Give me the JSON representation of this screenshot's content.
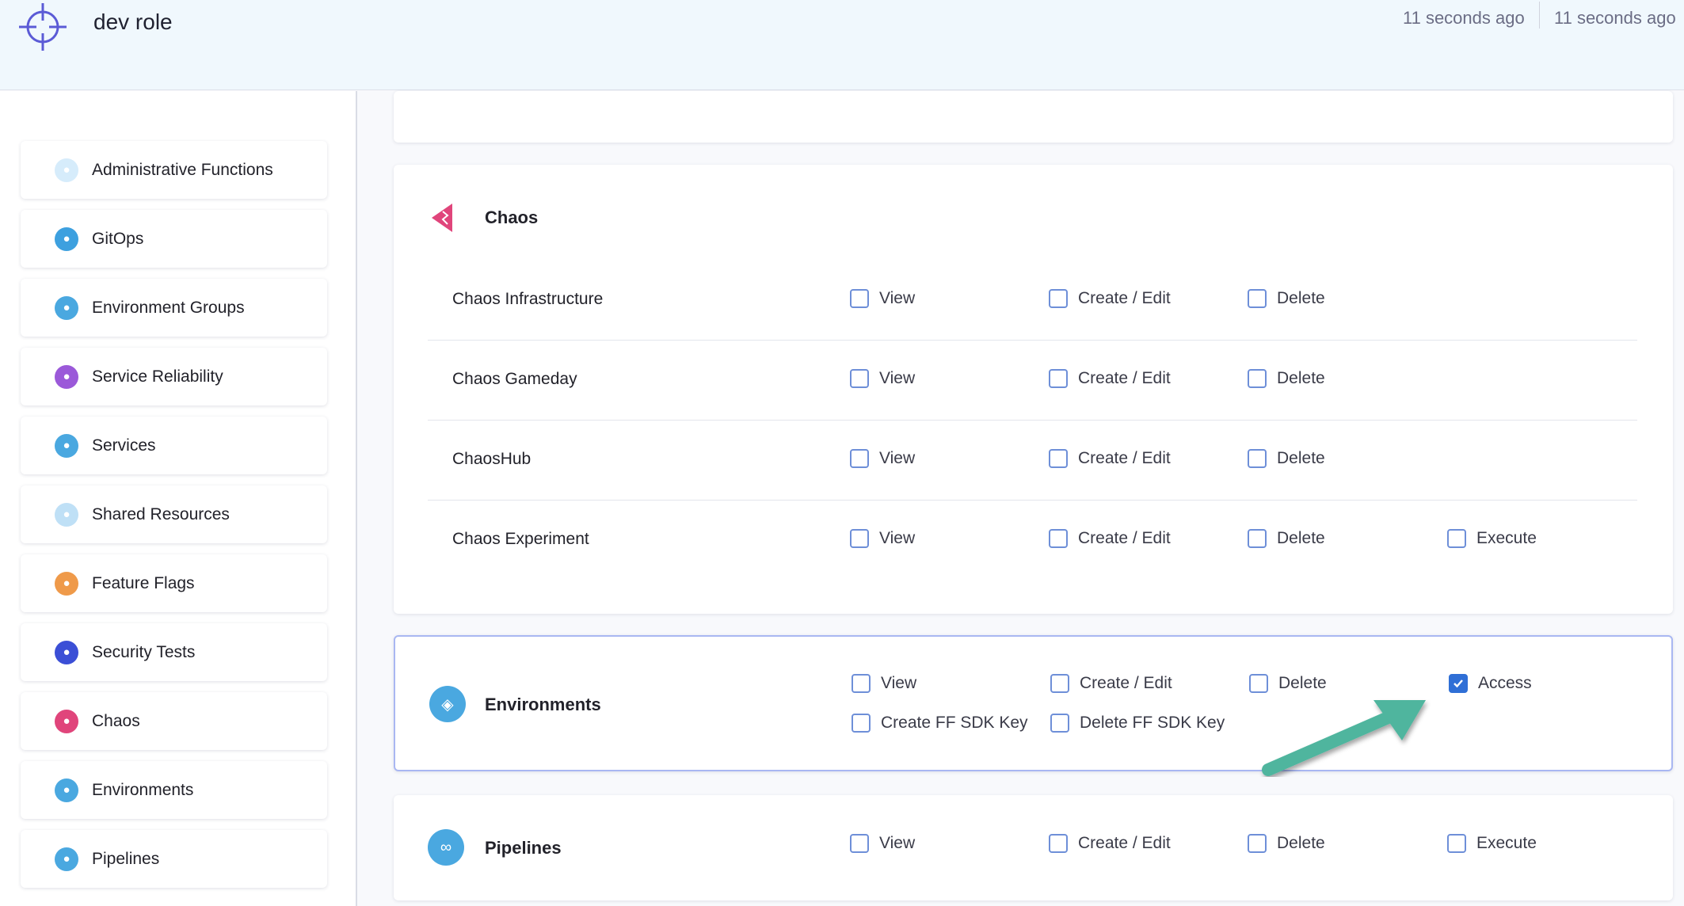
{
  "header": {
    "title": "dev role",
    "timestamps": [
      "11 seconds ago",
      "11 seconds ago"
    ],
    "logo_icon": "crosshair-icon",
    "accent": "#5b5bd6"
  },
  "sidebar": {
    "items": [
      {
        "label": "Administrative Functions",
        "icon": "gear-icon",
        "color": "#d6ecfb"
      },
      {
        "label": "GitOps",
        "icon": "gitops-icon",
        "color": "#3da0df"
      },
      {
        "label": "Environment Groups",
        "icon": "environment-groups-icon",
        "color": "#4aa8e0"
      },
      {
        "label": "Service Reliability",
        "icon": "service-reliability-icon",
        "color": "#9b59d9"
      },
      {
        "label": "Services",
        "icon": "services-icon",
        "color": "#4aa8e0"
      },
      {
        "label": "Shared Resources",
        "icon": "shared-resources-icon",
        "color": "#bfe0f6"
      },
      {
        "label": "Feature Flags",
        "icon": "feature-flags-icon",
        "color": "#ef9a4a"
      },
      {
        "label": "Security Tests",
        "icon": "shield-icon",
        "color": "#3b4fd6"
      },
      {
        "label": "Chaos",
        "icon": "chaos-icon",
        "color": "#e0457b"
      },
      {
        "label": "Environments",
        "icon": "environments-icon",
        "color": "#4aa8e0"
      },
      {
        "label": "Pipelines",
        "icon": "pipelines-icon",
        "color": "#4aa8e0"
      }
    ]
  },
  "chaos": {
    "title": "Chaos",
    "rows": [
      {
        "label": "Chaos Infrastructure",
        "perms": [
          "View",
          "Create / Edit",
          "Delete"
        ]
      },
      {
        "label": "Chaos Gameday",
        "perms": [
          "View",
          "Create / Edit",
          "Delete"
        ]
      },
      {
        "label": "ChaosHub",
        "perms": [
          "View",
          "Create / Edit",
          "Delete"
        ]
      },
      {
        "label": "Chaos Experiment",
        "perms": [
          "View",
          "Create / Edit",
          "Delete",
          "Execute"
        ]
      }
    ]
  },
  "environments": {
    "title": "Environments",
    "perms": [
      {
        "label": "View",
        "checked": false
      },
      {
        "label": "Create / Edit",
        "checked": false
      },
      {
        "label": "Delete",
        "checked": false
      },
      {
        "label": "Access",
        "checked": true
      },
      {
        "label": "Create FF SDK Key",
        "checked": false
      },
      {
        "label": "Delete FF SDK Key",
        "checked": false
      }
    ]
  },
  "pipelines": {
    "title": "Pipelines",
    "perms": [
      {
        "label": "View",
        "checked": false
      },
      {
        "label": "Create / Edit",
        "checked": false
      },
      {
        "label": "Delete",
        "checked": false
      },
      {
        "label": "Execute",
        "checked": false
      }
    ]
  },
  "annotation": {
    "arrow_color": "#4fb59e"
  }
}
